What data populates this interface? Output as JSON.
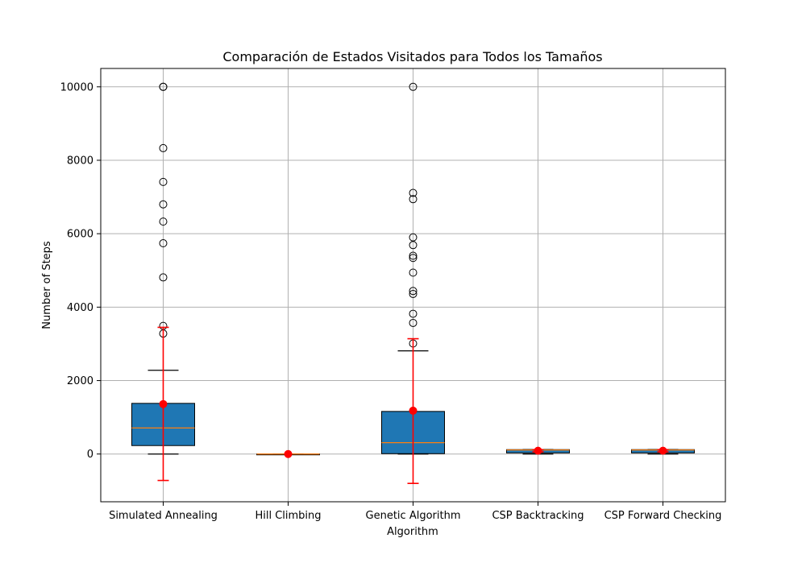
{
  "chart_data": {
    "type": "box",
    "title": "Comparación de Estados Visitados para Todos los Tamaños",
    "xlabel": "Algorithm",
    "ylabel": "Number of Steps",
    "ylim": [
      -1300,
      10500
    ],
    "yticks": [
      0,
      2000,
      4000,
      6000,
      8000,
      10000
    ],
    "grid": true,
    "categories": [
      "Simulated Annealing",
      "Hill Climbing",
      "Genetic Algorithm",
      "CSP Backtracking",
      "CSP Forward Checking"
    ],
    "box_color": "#1f77b4",
    "median_color": "#ff7f0e",
    "mean_color": "#ff0000",
    "boxes": [
      {
        "whisker_low": 0,
        "q1": 230,
        "median": 710,
        "q3": 1380,
        "whisker_high": 2280,
        "outliers": [
          10000,
          10000,
          8330,
          7410,
          6800,
          6330,
          5740,
          4810,
          3490,
          3280
        ],
        "mean": 1360,
        "std_low": -720,
        "std_high": 3450
      },
      {
        "whisker_low": 0,
        "q1": 0,
        "median": 0,
        "q3": 0,
        "whisker_high": 0,
        "outliers": [],
        "mean": 0,
        "std_low": 0,
        "std_high": 0
      },
      {
        "whisker_low": 0,
        "q1": 10,
        "median": 310,
        "q3": 1160,
        "whisker_high": 2810,
        "outliers": [
          10000,
          7110,
          6940,
          5900,
          5690,
          5400,
          5340,
          4940,
          4440,
          4360,
          3820,
          3570,
          3010
        ],
        "mean": 1180,
        "std_low": -800,
        "std_high": 3140
      },
      {
        "whisker_low": 0,
        "q1": 30,
        "median": 110,
        "q3": 120,
        "whisker_high": 120,
        "outliers": [],
        "mean": 90,
        "std_low": 60,
        "std_high": 120
      },
      {
        "whisker_low": 0,
        "q1": 30,
        "median": 110,
        "q3": 120,
        "whisker_high": 120,
        "outliers": [],
        "mean": 90,
        "std_low": 60,
        "std_high": 120
      }
    ]
  }
}
